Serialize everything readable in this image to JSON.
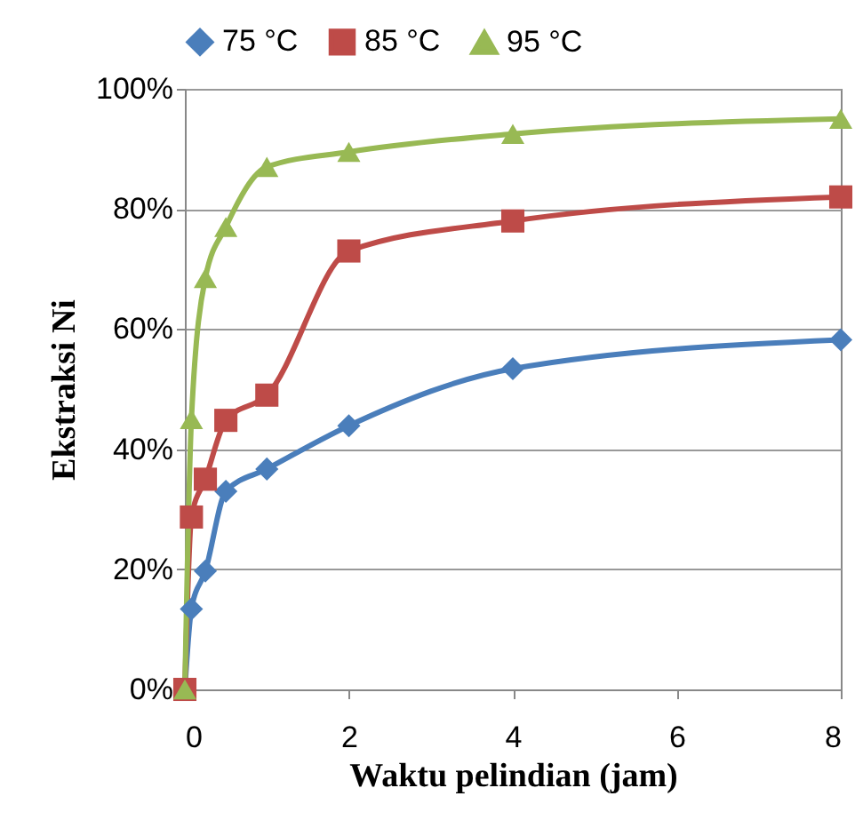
{
  "chart_data": {
    "type": "line",
    "xlabel": "Waktu pelindian (jam)",
    "ylabel": "Ekstraksi Ni",
    "xlim": [
      0,
      8
    ],
    "xticks": [
      0,
      2,
      4,
      6,
      8
    ],
    "ylim": [
      0,
      100
    ],
    "yticks": [
      {
        "value": 0,
        "label": "0%"
      },
      {
        "value": 20,
        "label": "20%"
      },
      {
        "value": 40,
        "label": "40%"
      },
      {
        "value": 60,
        "label": "60%"
      },
      {
        "value": 80,
        "label": "80%"
      },
      {
        "value": 100,
        "label": "100%"
      }
    ],
    "grid": "y",
    "legend": "top",
    "x": [
      0,
      0.08,
      0.25,
      0.5,
      1,
      2,
      4,
      8
    ],
    "series": [
      {
        "name": "75 °C",
        "color": "#4a7ebb",
        "marker": "diamond",
        "values": [
          0,
          13.4,
          19.7,
          33,
          36.7,
          43.9,
          53.4,
          58.2
        ]
      },
      {
        "name": "85 °C",
        "color": "#be4b48",
        "marker": "square",
        "values": [
          0,
          28.7,
          35,
          44.8,
          49,
          73,
          78,
          82
        ]
      },
      {
        "name": "95 °C",
        "color": "#98b954",
        "marker": "triangle",
        "values": [
          0,
          45,
          68.5,
          77,
          87,
          89.5,
          92.5,
          95
        ]
      }
    ]
  }
}
